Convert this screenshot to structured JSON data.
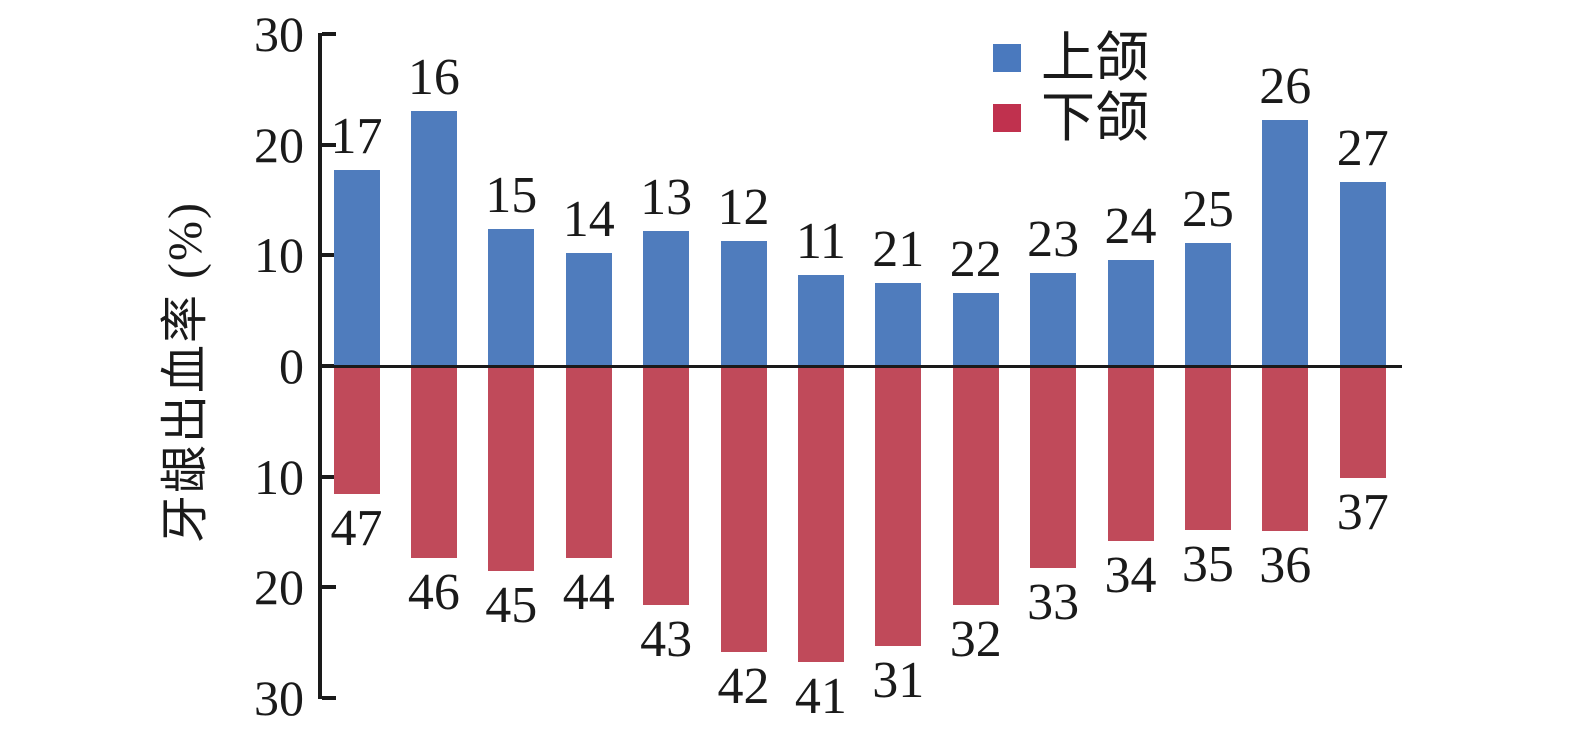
{
  "chart_data": {
    "type": "bar",
    "variant": "diverging-vertical",
    "title": "",
    "xlabel": "",
    "ylabel": "牙龈出血率 (%)",
    "ylim": [
      -30,
      30
    ],
    "grid": false,
    "legend_position": "top-right",
    "ytick_labels": [
      "30",
      "20",
      "10",
      "0",
      "10",
      "20",
      "30"
    ],
    "ytick_values": [
      30,
      20,
      10,
      0,
      -10,
      -20,
      -30
    ],
    "legend": [
      {
        "label": "上颌",
        "color": "#4A79BE"
      },
      {
        "label": "下颌",
        "color": "#C0314E"
      }
    ],
    "series": [
      {
        "name": "上颌",
        "direction": "up",
        "color": "#4F7CBD",
        "points": [
          {
            "tooth": "17",
            "value": 17.7
          },
          {
            "tooth": "16",
            "value": 23.0
          },
          {
            "tooth": "15",
            "value": 12.4
          },
          {
            "tooth": "14",
            "value": 10.2
          },
          {
            "tooth": "13",
            "value": 12.2
          },
          {
            "tooth": "12",
            "value": 11.3
          },
          {
            "tooth": "11",
            "value": 8.2
          },
          {
            "tooth": "21",
            "value": 7.5
          },
          {
            "tooth": "22",
            "value": 6.6
          },
          {
            "tooth": "23",
            "value": 8.4
          },
          {
            "tooth": "24",
            "value": 9.6
          },
          {
            "tooth": "25",
            "value": 11.1
          },
          {
            "tooth": "26",
            "value": 22.2
          },
          {
            "tooth": "27",
            "value": 16.6
          }
        ]
      },
      {
        "name": "下颌",
        "direction": "down",
        "color": "#C04A5A",
        "points": [
          {
            "tooth": "47",
            "value": 11.4
          },
          {
            "tooth": "46",
            "value": 17.2
          },
          {
            "tooth": "45",
            "value": 18.3
          },
          {
            "tooth": "44",
            "value": 17.2
          },
          {
            "tooth": "43",
            "value": 21.4
          },
          {
            "tooth": "42",
            "value": 25.7
          },
          {
            "tooth": "41",
            "value": 26.6
          },
          {
            "tooth": "31",
            "value": 25.1
          },
          {
            "tooth": "32",
            "value": 21.4
          },
          {
            "tooth": "33",
            "value": 18.1
          },
          {
            "tooth": "34",
            "value": 15.6
          },
          {
            "tooth": "35",
            "value": 14.6
          },
          {
            "tooth": "36",
            "value": 14.7
          },
          {
            "tooth": "37",
            "value": 9.9
          }
        ]
      }
    ]
  }
}
